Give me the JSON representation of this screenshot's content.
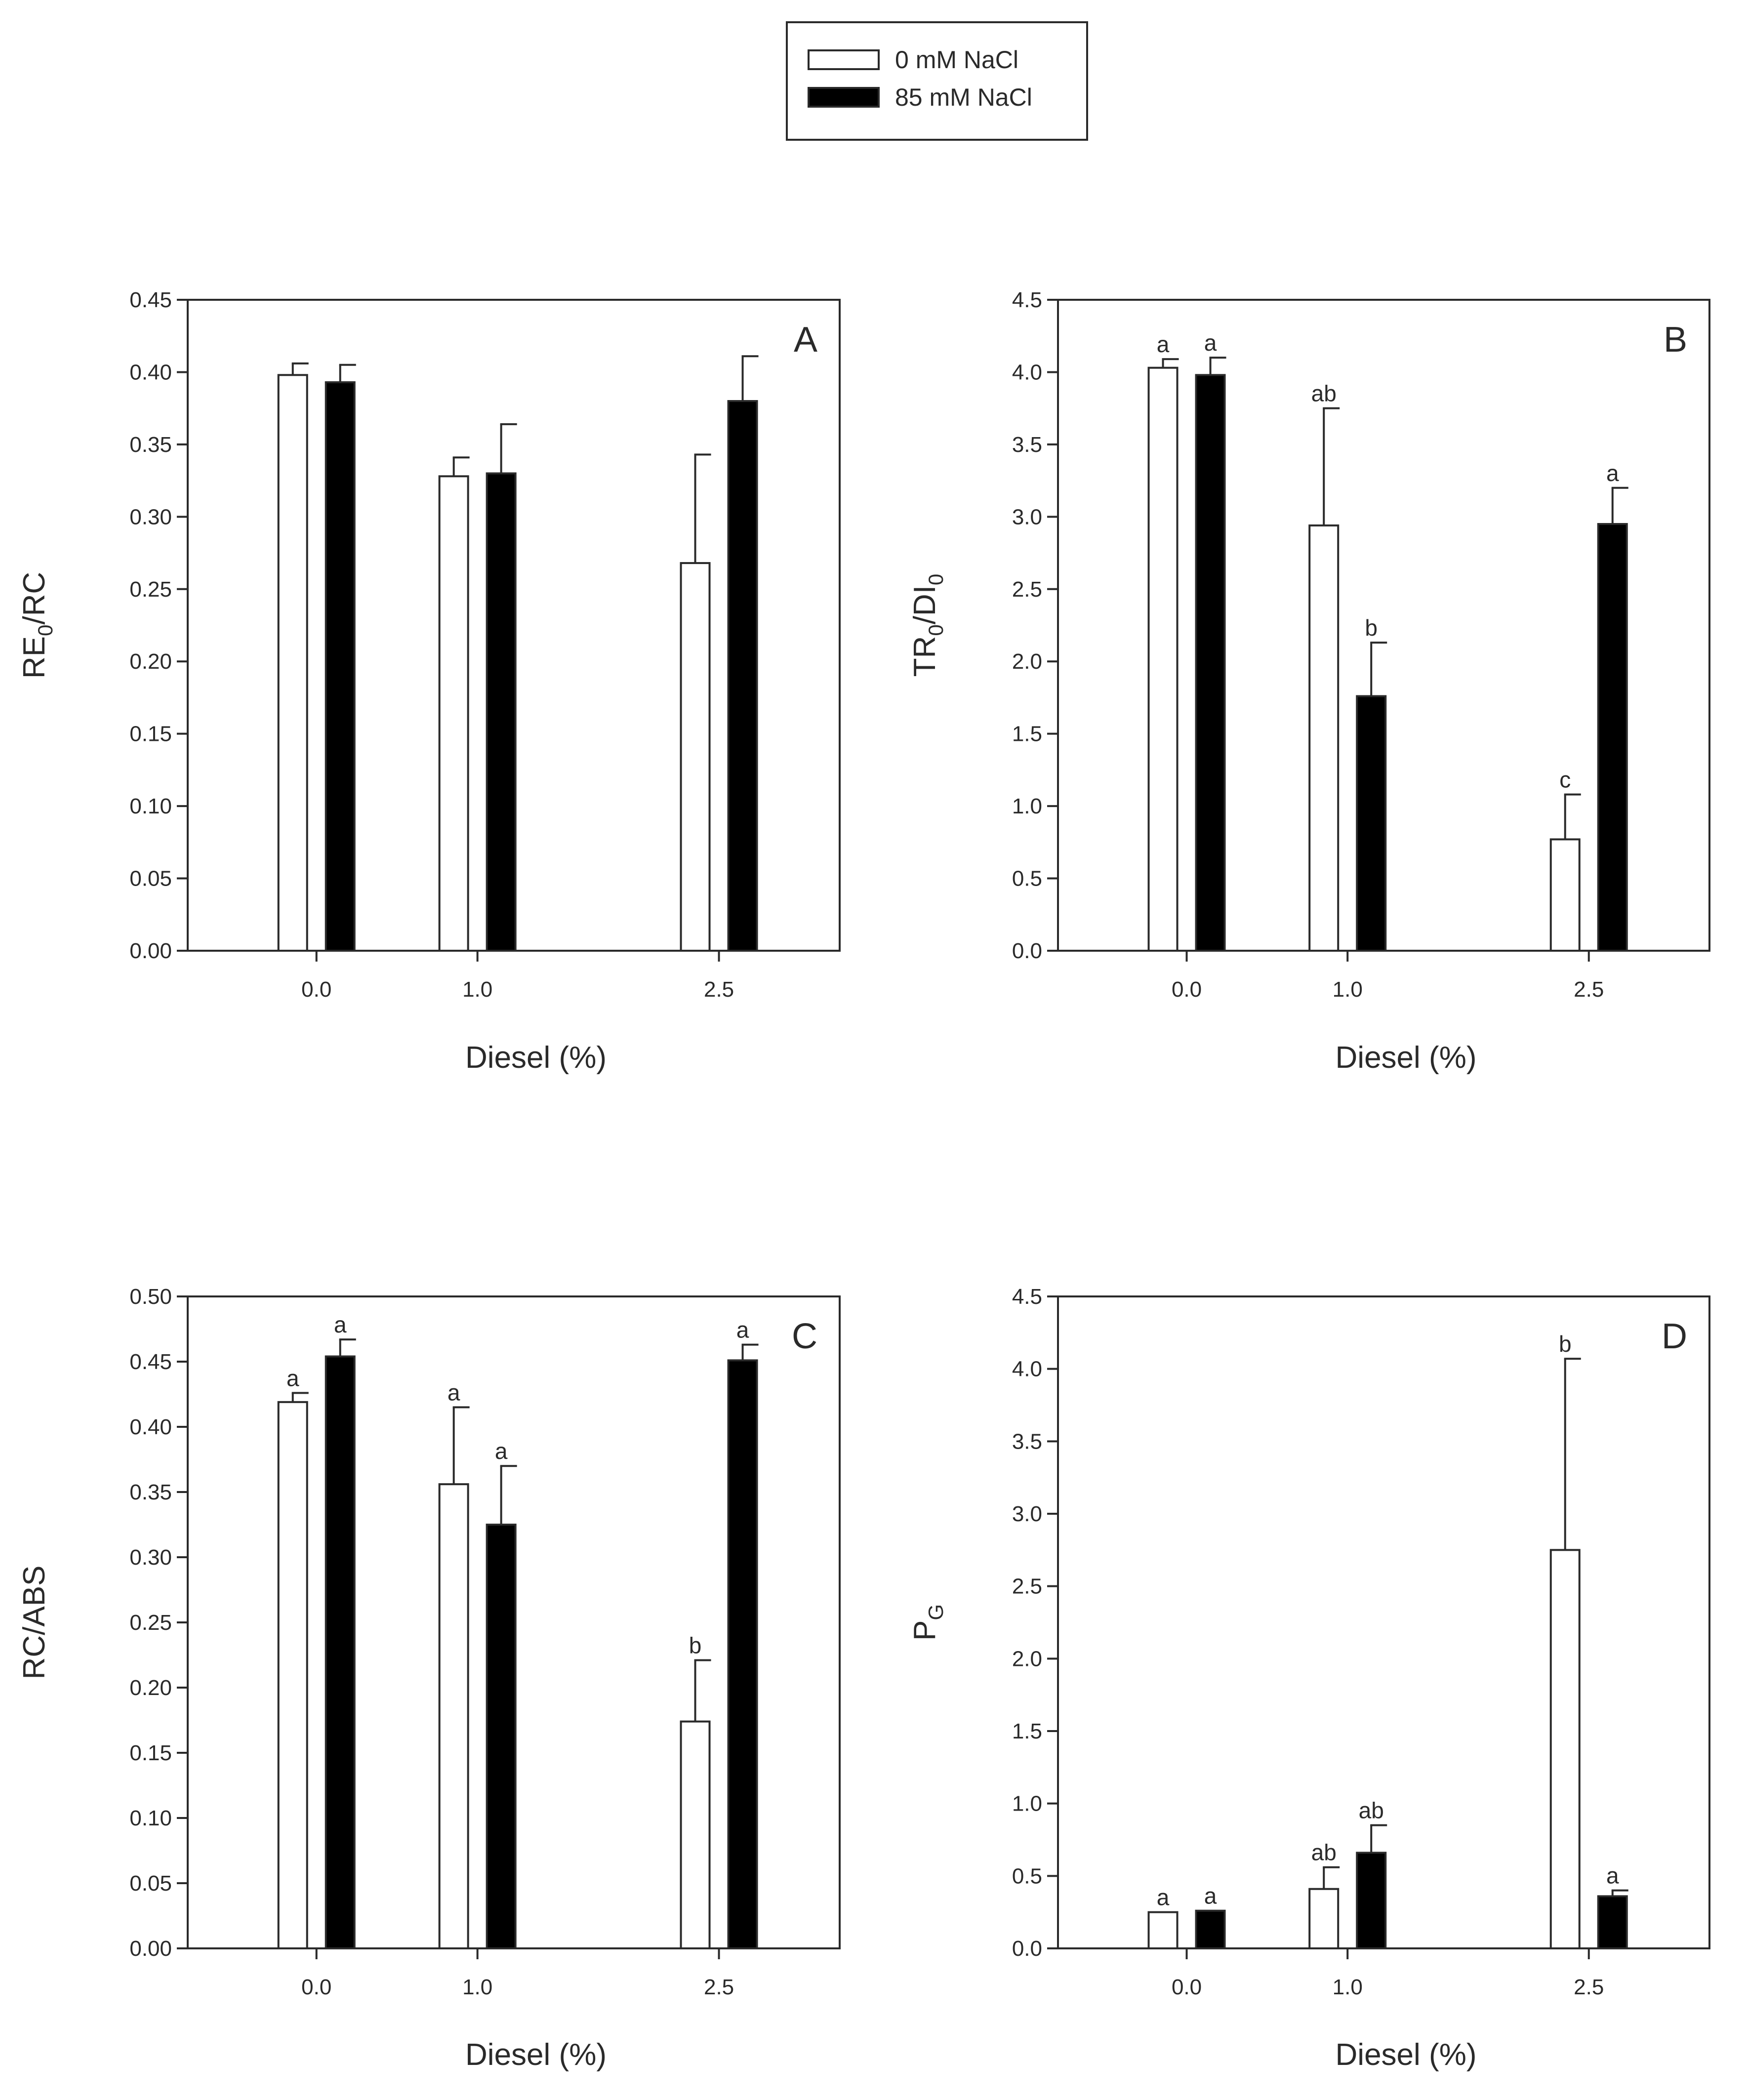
{
  "legend": {
    "entries": [
      {
        "label": "0 mM NaCl",
        "fill": "#ffffff"
      },
      {
        "label": "85 mM NaCl",
        "fill": "#000000"
      }
    ]
  },
  "colors": {
    "series_open": "#ffffff",
    "series_filled": "#000000",
    "axis": "#2a2a2a"
  },
  "chart_data": [
    {
      "type": "bar",
      "panel": "A",
      "categories": [
        "0.0",
        "1.0",
        "2.5"
      ],
      "x": [
        0.0,
        1.0,
        2.5
      ],
      "xlabel": "Diesel (%)",
      "ylabel": {
        "main": "RE",
        "sub": "0",
        "tail": "/RC"
      },
      "ylim": [
        0,
        0.45
      ],
      "yticks": [
        0.0,
        0.05,
        0.1,
        0.15,
        0.2,
        0.25,
        0.3,
        0.35,
        0.4,
        0.45
      ],
      "tick_decimals": 2,
      "series": [
        {
          "name": "0 mM NaCl",
          "values": [
            0.398,
            0.328,
            0.268
          ],
          "errors": [
            0.008,
            0.013,
            0.075
          ],
          "letters": [
            "",
            "",
            ""
          ]
        },
        {
          "name": "85 mM NaCl",
          "values": [
            0.393,
            0.33,
            0.38
          ],
          "errors": [
            0.012,
            0.034,
            0.031
          ],
          "letters": [
            "",
            "",
            ""
          ]
        }
      ]
    },
    {
      "type": "bar",
      "panel": "B",
      "categories": [
        "0.0",
        "1.0",
        "2.5"
      ],
      "x": [
        0.0,
        1.0,
        2.5
      ],
      "xlabel": "Diesel (%)",
      "ylabel": {
        "main": "TR",
        "sub": "0",
        "tail": "/DI",
        "sub2": "0"
      },
      "ylim": [
        0,
        4.5
      ],
      "yticks": [
        0.0,
        0.5,
        1.0,
        1.5,
        2.0,
        2.5,
        3.0,
        3.5,
        4.0,
        4.5
      ],
      "tick_decimals": 1,
      "series": [
        {
          "name": "0 mM NaCl",
          "values": [
            4.03,
            2.94,
            0.77
          ],
          "errors": [
            0.06,
            0.81,
            0.31
          ],
          "letters": [
            "a",
            "ab",
            "c"
          ]
        },
        {
          "name": "85 mM NaCl",
          "values": [
            3.98,
            1.76,
            2.95
          ],
          "errors": [
            0.12,
            0.37,
            0.25
          ],
          "letters": [
            "a",
            "b",
            "a"
          ]
        }
      ]
    },
    {
      "type": "bar",
      "panel": "C",
      "categories": [
        "0.0",
        "1.0",
        "2.5"
      ],
      "x": [
        0.0,
        1.0,
        2.5
      ],
      "xlabel": "Diesel (%)",
      "ylabel": {
        "main": "RC/ABS"
      },
      "ylim": [
        0,
        0.5
      ],
      "yticks": [
        0.0,
        0.05,
        0.1,
        0.15,
        0.2,
        0.25,
        0.3,
        0.35,
        0.4,
        0.45,
        0.5
      ],
      "tick_decimals": 2,
      "series": [
        {
          "name": "0 mM NaCl",
          "values": [
            0.419,
            0.356,
            0.174
          ],
          "errors": [
            0.007,
            0.059,
            0.047
          ],
          "letters": [
            "a",
            "a",
            "b"
          ]
        },
        {
          "name": "85 mM NaCl",
          "values": [
            0.454,
            0.325,
            0.451
          ],
          "errors": [
            0.013,
            0.045,
            0.012
          ],
          "letters": [
            "a",
            "a",
            "a"
          ]
        }
      ]
    },
    {
      "type": "bar",
      "panel": "D",
      "categories": [
        "0.0",
        "1.0",
        "2.5"
      ],
      "x": [
        0.0,
        1.0,
        2.5
      ],
      "xlabel": "Diesel (%)",
      "ylabel": {
        "main": "P",
        "sub": "G"
      },
      "ylim": [
        0,
        4.5
      ],
      "yticks": [
        0.0,
        0.5,
        1.0,
        1.5,
        2.0,
        2.5,
        3.0,
        3.5,
        4.0,
        4.5
      ],
      "tick_decimals": 1,
      "series": [
        {
          "name": "0 mM NaCl",
          "values": [
            0.25,
            0.41,
            2.75
          ],
          "errors": [
            0.0,
            0.15,
            1.32
          ],
          "letters": [
            "a",
            "ab",
            "b"
          ]
        },
        {
          "name": "85 mM NaCl",
          "values": [
            0.26,
            0.66,
            0.36
          ],
          "errors": [
            0.0,
            0.19,
            0.04
          ],
          "letters": [
            "a",
            "ab",
            "a"
          ]
        }
      ]
    }
  ]
}
